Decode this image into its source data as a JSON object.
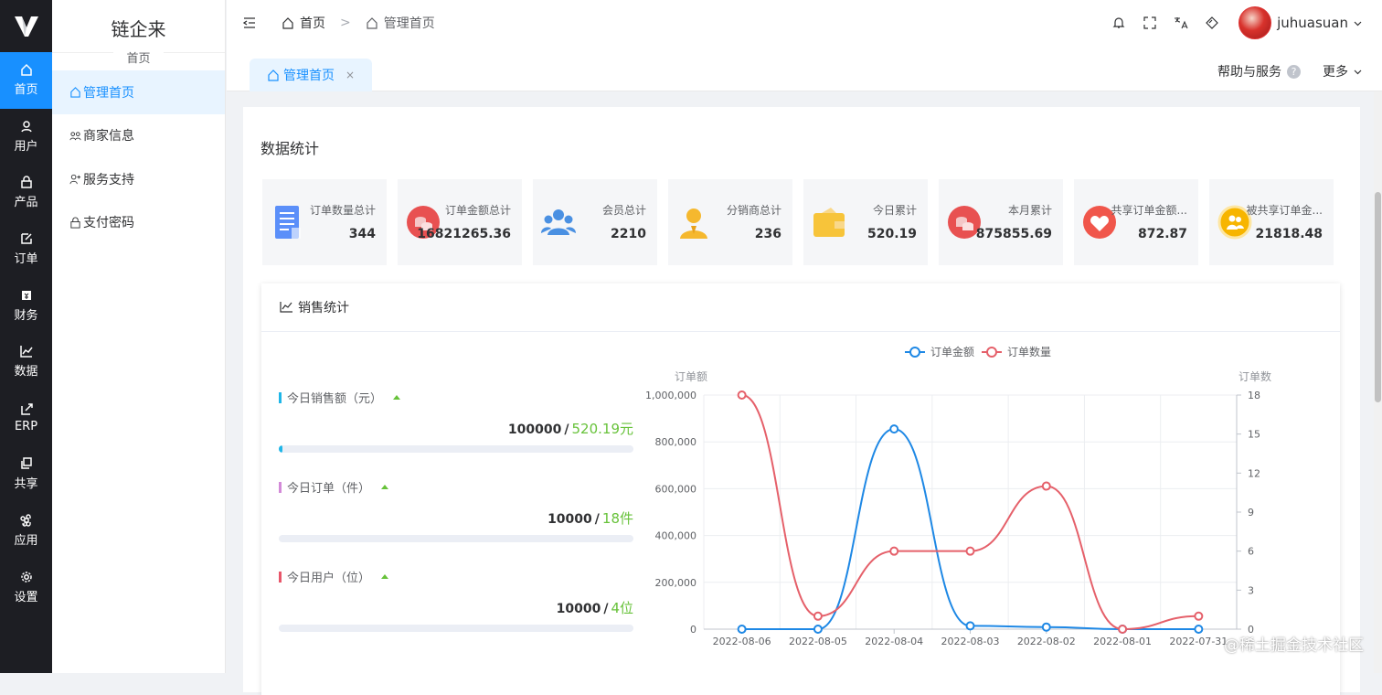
{
  "rail": {
    "items": [
      {
        "label": "首页",
        "icon": "home-icon",
        "active": true
      },
      {
        "label": "用户",
        "icon": "user-icon"
      },
      {
        "label": "产品",
        "icon": "lock-icon"
      },
      {
        "label": "订单",
        "icon": "edit-icon"
      },
      {
        "label": "财务",
        "icon": "money-icon"
      },
      {
        "label": "数据",
        "icon": "chart-icon"
      },
      {
        "label": "ERP",
        "icon": "external-icon"
      },
      {
        "label": "共享",
        "icon": "copy-icon"
      },
      {
        "label": "应用",
        "icon": "command-icon"
      },
      {
        "label": "设置",
        "icon": "gear-icon"
      }
    ]
  },
  "sub": {
    "title": "链企来",
    "caption": "首页",
    "items": [
      {
        "label": "管理首页",
        "icon": "home-icon",
        "active": true
      },
      {
        "label": "商家信息",
        "icon": "users-icon"
      },
      {
        "label": "服务支持",
        "icon": "user-add-icon"
      },
      {
        "label": "支付密码",
        "icon": "lock-icon"
      }
    ]
  },
  "top": {
    "breadcrumb": [
      "首页",
      "管理首页"
    ],
    "sep": ">",
    "username": "juhuasuan"
  },
  "tabbar": {
    "tab": "管理首页",
    "close": "×",
    "help": "帮助与服务",
    "help_mark": "?",
    "more": "更多"
  },
  "section_title": "数据统计",
  "stats": [
    {
      "label": "订单数量总计",
      "value": "344",
      "color": "#5b8ff9",
      "icon": "document-icon"
    },
    {
      "label": "订单金额总计",
      "value": "16821265.36",
      "color": "#e85151",
      "icon": "coins-icon"
    },
    {
      "label": "会员总计",
      "value": "2210",
      "color": "#4a90e2",
      "icon": "group-icon"
    },
    {
      "label": "分销商总计",
      "value": "236",
      "color": "#f5b82e",
      "icon": "agent-icon"
    },
    {
      "label": "今日累计",
      "value": "520.19",
      "color": "#f7c43a",
      "icon": "wallet-icon"
    },
    {
      "label": "本月累计",
      "value": "875855.69",
      "color": "#e85151",
      "icon": "coins-icon"
    },
    {
      "label": "共享订单金额...",
      "value": "872.87",
      "color": "#f0564b",
      "icon": "heart-hand-icon"
    },
    {
      "label": "被共享订单金...",
      "value": "21818.48",
      "color": "#f7b500",
      "icon": "people-icon"
    }
  ],
  "sales": {
    "title": "销售统计",
    "rows": [
      {
        "label": "今日销售额（元）",
        "target": "100000",
        "sep": "/",
        "current": "520.19元",
        "mark": "#1fb6e8",
        "fraction": 0.0052
      },
      {
        "label": "今日订单（件）",
        "target": "10000",
        "sep": "/",
        "current": "18件",
        "mark": "#d38ad8",
        "fraction": 0.0018
      },
      {
        "label": "今日用户（位）",
        "target": "10000",
        "sep": "/",
        "current": "4位",
        "mark": "#e8566a",
        "fraction": 0.0004
      }
    ]
  },
  "chart_data": {
    "type": "line",
    "categories": [
      "2022-08-06",
      "2022-08-05",
      "2022-08-04",
      "2022-08-03",
      "2022-08-02",
      "2022-08-01",
      "2022-07-31"
    ],
    "ylabel": "订单额",
    "y2label": "订单数",
    "ylim": [
      0,
      1000000
    ],
    "y2lim": [
      0,
      18
    ],
    "yticks": [
      "0",
      "200,000",
      "400,000",
      "600,000",
      "800,000",
      "1,000,000"
    ],
    "y2ticks": [
      "0",
      "3",
      "6",
      "9",
      "12",
      "15",
      "18"
    ],
    "legend_position": "top-center",
    "series": [
      {
        "name": "订单金额",
        "axis": "left",
        "color": "#1e88e5",
        "values": [
          0,
          0,
          855000,
          14000,
          9000,
          0,
          0
        ]
      },
      {
        "name": "订单数量",
        "axis": "right",
        "color": "#e5606a",
        "values": [
          18,
          1,
          6,
          6,
          11,
          0,
          1
        ]
      }
    ]
  },
  "watermark": "@稀土掘金技术社区"
}
